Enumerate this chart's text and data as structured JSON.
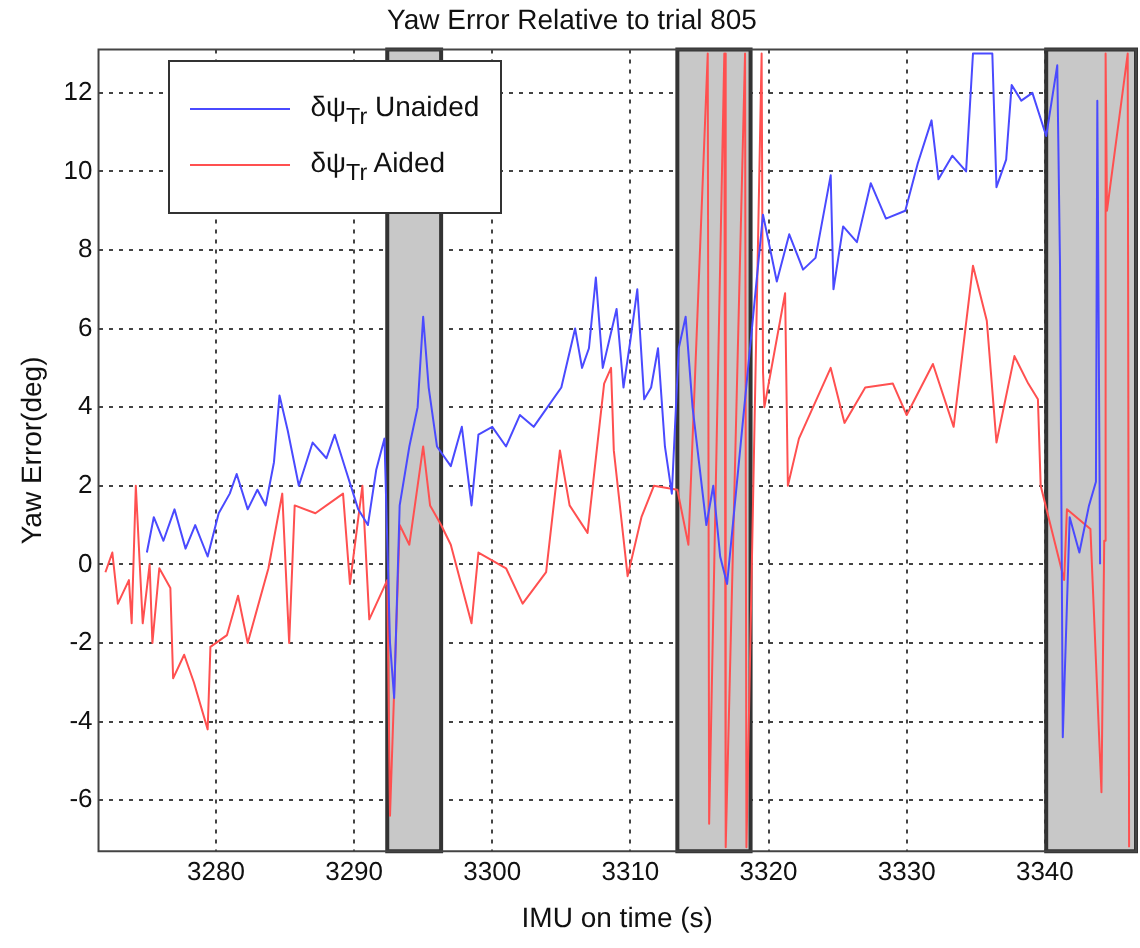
{
  "chart_data": {
    "type": "line",
    "title": "Yaw Error Relative to trial 805",
    "xlabel": "IMU on time (s)",
    "ylabel": "Yaw Error(deg)",
    "xlim": [
      3271.5,
      3346.6
    ],
    "ylim": [
      -7.3,
      13.1
    ],
    "xticks": [
      3280,
      3290,
      3300,
      3310,
      3320,
      3330,
      3340
    ],
    "yticks": [
      -6,
      -4,
      -2,
      0,
      2,
      4,
      6,
      8,
      10,
      12
    ],
    "grid": true,
    "legend": "top left",
    "line_style": "solid",
    "bands": [
      {
        "axis": "x",
        "from": 3292.4,
        "to": 3296.3,
        "color": "#c8c8c8"
      },
      {
        "axis": "x",
        "from": 3313.4,
        "to": 3318.7,
        "color": "#c8c8c8"
      },
      {
        "axis": "x",
        "from": 3340.1,
        "to": 3346.6,
        "color": "#c8c8c8"
      }
    ],
    "series": [
      {
        "name": "δψ$_{Tr}$ Unaided",
        "color": "#4a4aff",
        "x": [
          3275,
          3275.5,
          3276.2,
          3277,
          3277.8,
          3278.5,
          3279.4,
          3280.2,
          3281,
          3281.5,
          3282.3,
          3283,
          3283.6,
          3284.2,
          3284.6,
          3285.2,
          3286,
          3287,
          3288,
          3288.6,
          3289.4,
          3290.3,
          3291,
          3291.6,
          3292.2,
          3292.6,
          3292.9,
          3293.3,
          3294,
          3294.6,
          3295,
          3295.4,
          3296,
          3297,
          3297.8,
          3298.5,
          3299,
          3300,
          3301,
          3302,
          3303,
          3304,
          3305,
          3306,
          3306.5,
          3307,
          3307.5,
          3308,
          3309,
          3309.5,
          3310,
          3310.5,
          3311,
          3311.5,
          3312,
          3312.5,
          3313,
          3313.5,
          3314,
          3314.5,
          3315,
          3315.5,
          3316,
          3316.5,
          3317,
          3319.6,
          3320.6,
          3321.5,
          3322.5,
          3323.4,
          3324.5,
          3324.7,
          3325.4,
          3326.4,
          3327.4,
          3328.5,
          3329.9,
          3330.8,
          3331.8,
          3332.3,
          3333.3,
          3334.3,
          3334.8,
          3336.2,
          3336.5,
          3337.2,
          3337.6,
          3338.3,
          3339.1,
          3340.1,
          3340.9,
          3341.1,
          3341.3,
          3341.8,
          3342.5,
          3343.2,
          3343.7,
          3343.8,
          3344
        ],
        "values": [
          0.3,
          1.2,
          0.6,
          1.4,
          0.4,
          1.0,
          0.2,
          1.3,
          1.8,
          2.3,
          1.4,
          1.9,
          1.5,
          2.6,
          4.3,
          3.4,
          2.0,
          3.1,
          2.7,
          3.3,
          2.4,
          1.4,
          1.0,
          2.4,
          3.2,
          -2.0,
          -3.4,
          1.5,
          3.0,
          4.0,
          6.3,
          4.5,
          3.0,
          2.5,
          3.5,
          1.5,
          3.3,
          3.5,
          3.0,
          3.8,
          3.5,
          4.0,
          4.5,
          6.0,
          5.0,
          5.5,
          7.3,
          5.0,
          6.5,
          4.5,
          5.7,
          7.0,
          4.2,
          4.5,
          5.5,
          3.0,
          1.8,
          5.5,
          6.3,
          4.0,
          2.5,
          1.0,
          2.0,
          0.2,
          -0.5,
          8.9,
          7.2,
          8.4,
          7.5,
          7.8,
          9.9,
          7.0,
          8.6,
          8.2,
          9.7,
          8.8,
          9.0,
          10.2,
          11.3,
          9.8,
          10.4,
          10.0,
          13.0,
          13.0,
          9.6,
          10.3,
          12.2,
          11.8,
          12.0,
          10.9,
          12.7,
          7.6,
          -4.4,
          1.2,
          0.3,
          1.5,
          2.1,
          11.8,
          0.0
        ]
      },
      {
        "name": "δψ$_{Tr}$ Aided",
        "color": "#ff5050",
        "x": [
          3272,
          3272.5,
          3272.9,
          3273.7,
          3273.9,
          3274.2,
          3274.7,
          3275.2,
          3275.4,
          3275.9,
          3276.7,
          3276.9,
          3277.7,
          3278.4,
          3279.4,
          3279.6,
          3280.8,
          3281.6,
          3282.3,
          3283.8,
          3284.8,
          3285.3,
          3285.7,
          3287.2,
          3289.2,
          3289.7,
          3290.6,
          3291.1,
          3292.4,
          3292.6,
          3293.3,
          3294,
          3295,
          3295.5,
          3296.3,
          3297,
          3298.5,
          3299,
          3301,
          3302.2,
          3303.9,
          3304.9,
          3305.6,
          3306.9,
          3308.1,
          3308.6,
          3308.8,
          3309.8,
          3310.8,
          3311.7,
          3313.4,
          3314.2,
          3315.6,
          3315.7,
          3316.8,
          3316.9,
          3318.3,
          3318.4,
          3319.5,
          3319.6,
          3319.7,
          3321.2,
          3321.4,
          3322.2,
          3324.5,
          3325.5,
          3327,
          3329,
          3330,
          3331.9,
          3333.4,
          3334.8,
          3335.8,
          3336.5,
          3337.8,
          3338.8,
          3339.5,
          3339.7,
          3341.4,
          3341.6,
          3343.3,
          3344.1,
          3344.3,
          3344.4,
          3344.5,
          3346,
          3346.1
        ],
        "values": [
          -0.2,
          0.3,
          -1.0,
          -0.4,
          -1.5,
          2.0,
          -1.5,
          0.0,
          -2.0,
          -0.1,
          -0.6,
          -2.9,
          -2.3,
          -3.0,
          -4.2,
          -2.1,
          -1.8,
          -0.8,
          -2.0,
          -0.1,
          1.8,
          -2.0,
          1.5,
          1.3,
          1.8,
          -0.5,
          2.0,
          -1.4,
          -0.4,
          -6.4,
          1.0,
          0.5,
          3.0,
          1.5,
          1.0,
          0.5,
          -1.5,
          0.3,
          -0.1,
          -1.0,
          -0.2,
          2.9,
          1.5,
          0.8,
          4.6,
          5.0,
          2.9,
          -0.3,
          1.2,
          2.0,
          1.9,
          0.5,
          13.0,
          -6.6,
          13.0,
          -7.2,
          13.0,
          -7.2,
          13.0,
          4.9,
          4.0,
          6.9,
          2.0,
          3.2,
          5.0,
          3.6,
          4.5,
          4.6,
          3.8,
          5.1,
          3.5,
          7.6,
          6.2,
          3.1,
          5.3,
          4.6,
          4.2,
          2.0,
          -0.4,
          1.4,
          0.9,
          -5.8,
          0.6,
          13.0,
          9.0,
          13.0,
          -7.2
        ]
      }
    ]
  }
}
